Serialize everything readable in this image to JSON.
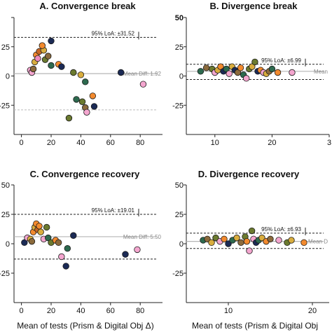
{
  "chart_data": [
    {
      "type": "scatter",
      "title": "A. Convergence break",
      "xlim": [
        -5,
        95
      ],
      "ylim": [
        -50,
        50
      ],
      "xticks": [
        "0",
        "20",
        "40",
        "60",
        "80"
      ],
      "yticks": [
        "-25",
        "0",
        "25",
        ""
      ],
      "loa_upper": 33,
      "loa_lower": -29,
      "mean_line": 2,
      "loa_label": "95% LoA: ±31.52",
      "mean_label": "Mean Diff: 1.92",
      "xlabel": "",
      "points": [
        {
          "x": 6,
          "y": 5,
          "c": "#f4a6cf"
        },
        {
          "x": 7,
          "y": 3,
          "c": "#f4a6cf"
        },
        {
          "x": 8,
          "y": 6,
          "c": "#8b6a3c"
        },
        {
          "x": 9,
          "y": 12,
          "c": "#d9ad3e"
        },
        {
          "x": 10,
          "y": 18,
          "c": "#f28a2e"
        },
        {
          "x": 12,
          "y": 21,
          "c": "#c76826"
        },
        {
          "x": 11,
          "y": 15,
          "c": "#f08cbc"
        },
        {
          "x": 15,
          "y": 22,
          "c": "#d9ad3e"
        },
        {
          "x": 14,
          "y": 26,
          "c": "#f28a2e"
        },
        {
          "x": 16,
          "y": 14,
          "c": "#6b7a2f"
        },
        {
          "x": 18,
          "y": 17,
          "c": "#8b6a3c"
        },
        {
          "x": 20,
          "y": 30,
          "c": "#1b2a55"
        },
        {
          "x": 20,
          "y": 9,
          "c": "#2d6a4f"
        },
        {
          "x": 25,
          "y": 10,
          "c": "#f28a2e"
        },
        {
          "x": 27,
          "y": 8,
          "c": "#1b2a55"
        },
        {
          "x": 35,
          "y": 3,
          "c": "#6b7a2f"
        },
        {
          "x": 40,
          "y": 1,
          "c": "#d9ad3e"
        },
        {
          "x": 43,
          "y": -5,
          "c": "#2d6a4f"
        },
        {
          "x": 37,
          "y": -20,
          "c": "#2d6a4f"
        },
        {
          "x": 41,
          "y": -22,
          "c": "#6b7a2f"
        },
        {
          "x": 48,
          "y": -17,
          "c": "#f28a2e"
        },
        {
          "x": 43,
          "y": -27,
          "c": "#8b6a3c"
        },
        {
          "x": 44,
          "y": -31,
          "c": "#f4a6cf"
        },
        {
          "x": 49,
          "y": -26,
          "c": "#1b2a55"
        },
        {
          "x": 32,
          "y": -36,
          "c": "#6b7a2f"
        },
        {
          "x": 67,
          "y": 3,
          "c": "#1b2a55"
        },
        {
          "x": 82,
          "y": -7,
          "c": "#f4a6cf"
        }
      ]
    },
    {
      "type": "scatter",
      "title": "B. Divergence break",
      "xlim": [
        5,
        30
      ],
      "ylim": [
        -50,
        50
      ],
      "xticks": [
        "10",
        "20",
        "3"
      ],
      "yticks": [
        "-25",
        "0",
        "25",
        "50"
      ],
      "loa_upper": 10,
      "loa_lower": -3,
      "mean_line": 4,
      "loa_label": "95% LoA: ±6.99",
      "mean_label": "Mean",
      "xlabel": "",
      "points": [
        {
          "x": 7.5,
          "y": 4,
          "c": "#2d6a4f"
        },
        {
          "x": 8.5,
          "y": 7,
          "c": "#8b6a3c"
        },
        {
          "x": 9.5,
          "y": 6,
          "c": "#6b7a2f"
        },
        {
          "x": 10,
          "y": 3,
          "c": "#f4a6cf"
        },
        {
          "x": 10.5,
          "y": 5,
          "c": "#d9ad3e"
        },
        {
          "x": 11,
          "y": 8,
          "c": "#f28a2e"
        },
        {
          "x": 11.5,
          "y": 4,
          "c": "#1b2a55"
        },
        {
          "x": 12,
          "y": 6,
          "c": "#2d6a4f"
        },
        {
          "x": 12.5,
          "y": 2,
          "c": "#f4a6cf"
        },
        {
          "x": 13,
          "y": 8,
          "c": "#d9ad3e"
        },
        {
          "x": 13.5,
          "y": 5,
          "c": "#1b2a55"
        },
        {
          "x": 14,
          "y": 3,
          "c": "#8b6a3c"
        },
        {
          "x": 14.5,
          "y": 7,
          "c": "#f28a2e"
        },
        {
          "x": 15,
          "y": 1,
          "c": "#2d6a4f"
        },
        {
          "x": 15.5,
          "y": -2,
          "c": "#f4a6cf"
        },
        {
          "x": 16,
          "y": 6,
          "c": "#6b7a2f"
        },
        {
          "x": 16.5,
          "y": 8,
          "c": "#d9ad3e"
        },
        {
          "x": 17,
          "y": 12,
          "c": "#6b7a2f"
        },
        {
          "x": 17.5,
          "y": 4,
          "c": "#1b2a55"
        },
        {
          "x": 18,
          "y": 5,
          "c": "#f28a2e"
        },
        {
          "x": 18.5,
          "y": 3,
          "c": "#f4a6cf"
        },
        {
          "x": 19,
          "y": 2,
          "c": "#d9ad3e"
        },
        {
          "x": 19.5,
          "y": 4,
          "c": "#8b6a3c"
        },
        {
          "x": 20,
          "y": 6,
          "c": "#2d6a4f"
        },
        {
          "x": 21,
          "y": 3,
          "c": "#f28a2e"
        },
        {
          "x": 23.5,
          "y": 3,
          "c": "#f4a6cf"
        }
      ]
    },
    {
      "type": "scatter",
      "title": "C. Convergence recovery",
      "xlim": [
        -5,
        95
      ],
      "ylim": [
        -50,
        50
      ],
      "xticks": [
        "0",
        "20",
        "40",
        "60",
        "80"
      ],
      "yticks": [
        "-25",
        "0",
        "25",
        "50"
      ],
      "loa_upper": 25,
      "loa_lower": -13,
      "mean_line": 6,
      "loa_label": "95% LoA: ±19.01",
      "mean_label": "Mean Diff: 5.50",
      "xlabel": "Mean of tests (Prism & Digital Obj Δ)",
      "points": [
        {
          "x": 2,
          "y": 1,
          "c": "#1b2a55"
        },
        {
          "x": 4,
          "y": 5,
          "c": "#f4a6cf"
        },
        {
          "x": 6,
          "y": 4,
          "c": "#d9ad3e"
        },
        {
          "x": 7,
          "y": 2,
          "c": "#8b6a3c"
        },
        {
          "x": 8,
          "y": 10,
          "c": "#f28a2e"
        },
        {
          "x": 9,
          "y": 14,
          "c": "#d9ad3e"
        },
        {
          "x": 10,
          "y": 17,
          "c": "#f28a2e"
        },
        {
          "x": 11,
          "y": 12,
          "c": "#c76826"
        },
        {
          "x": 12,
          "y": 15,
          "c": "#f28a2e"
        },
        {
          "x": 13,
          "y": 10,
          "c": "#d9ad3e"
        },
        {
          "x": 15,
          "y": 4,
          "c": "#f4a6cf"
        },
        {
          "x": 17,
          "y": 14,
          "c": "#6b7a2f"
        },
        {
          "x": 18,
          "y": 5,
          "c": "#2d6a4f"
        },
        {
          "x": 20,
          "y": 1,
          "c": "#6b7a2f"
        },
        {
          "x": 23,
          "y": 3,
          "c": "#f28a2e"
        },
        {
          "x": 25,
          "y": 1,
          "c": "#8b6a3c"
        },
        {
          "x": 27,
          "y": -11,
          "c": "#f4a6cf"
        },
        {
          "x": 30,
          "y": -19,
          "c": "#1b2a55"
        },
        {
          "x": 31,
          "y": -4,
          "c": "#2d6a4f"
        },
        {
          "x": 35,
          "y": 7,
          "c": "#1b2a55"
        },
        {
          "x": 70,
          "y": -9,
          "c": "#1b2a55"
        },
        {
          "x": 78,
          "y": -5,
          "c": "#f4a6cf"
        }
      ]
    },
    {
      "type": "scatter",
      "title": "D. Divergence recovery",
      "xlim": [
        5,
        22
      ],
      "ylim": [
        -50,
        50
      ],
      "xticks": [
        "10",
        "20"
      ],
      "yticks": [
        "-25",
        "0",
        "25",
        "50"
      ],
      "loa_upper": 9,
      "loa_lower": -4,
      "mean_line": 2,
      "loa_label": "95% LoA: ±6.93",
      "mean_label": "Mean D",
      "xlabel": "Mean of tests (Prism & Digital Obj",
      "points": [
        {
          "x": 7,
          "y": 3,
          "c": "#2d6a4f"
        },
        {
          "x": 7.5,
          "y": 4,
          "c": "#8b6a3c"
        },
        {
          "x": 8,
          "y": 1,
          "c": "#d9ad3e"
        },
        {
          "x": 8.5,
          "y": 5,
          "c": "#6b7a2f"
        },
        {
          "x": 9,
          "y": 2,
          "c": "#f4a6cf"
        },
        {
          "x": 9.5,
          "y": 4,
          "c": "#f28a2e"
        },
        {
          "x": 10,
          "y": 0,
          "c": "#1b2a55"
        },
        {
          "x": 10.5,
          "y": 3,
          "c": "#2d6a4f"
        },
        {
          "x": 11,
          "y": 5,
          "c": "#d9ad3e"
        },
        {
          "x": 11.5,
          "y": 1,
          "c": "#8b6a3c"
        },
        {
          "x": 12,
          "y": 6,
          "c": "#6b7a2f"
        },
        {
          "x": 12.2,
          "y": 2,
          "c": "#f28a2e"
        },
        {
          "x": 12.5,
          "y": -6,
          "c": "#f4a6cf"
        },
        {
          "x": 12.8,
          "y": 11,
          "c": "#6b7a2f"
        },
        {
          "x": 13,
          "y": 4,
          "c": "#f4a6cf"
        },
        {
          "x": 13.3,
          "y": 1,
          "c": "#1b2a55"
        },
        {
          "x": 13.6,
          "y": 3,
          "c": "#2d6a4f"
        },
        {
          "x": 14,
          "y": 5,
          "c": "#d9ad3e"
        },
        {
          "x": 14.5,
          "y": 2,
          "c": "#f28a2e"
        },
        {
          "x": 15,
          "y": 4,
          "c": "#8b6a3c"
        },
        {
          "x": 16,
          "y": 3,
          "c": "#f4a6cf"
        },
        {
          "x": 17,
          "y": 1,
          "c": "#6b7a2f"
        },
        {
          "x": 17.5,
          "y": 3,
          "c": "#d9ad3e"
        },
        {
          "x": 19,
          "y": 1,
          "c": "#f28a2e"
        }
      ]
    }
  ]
}
